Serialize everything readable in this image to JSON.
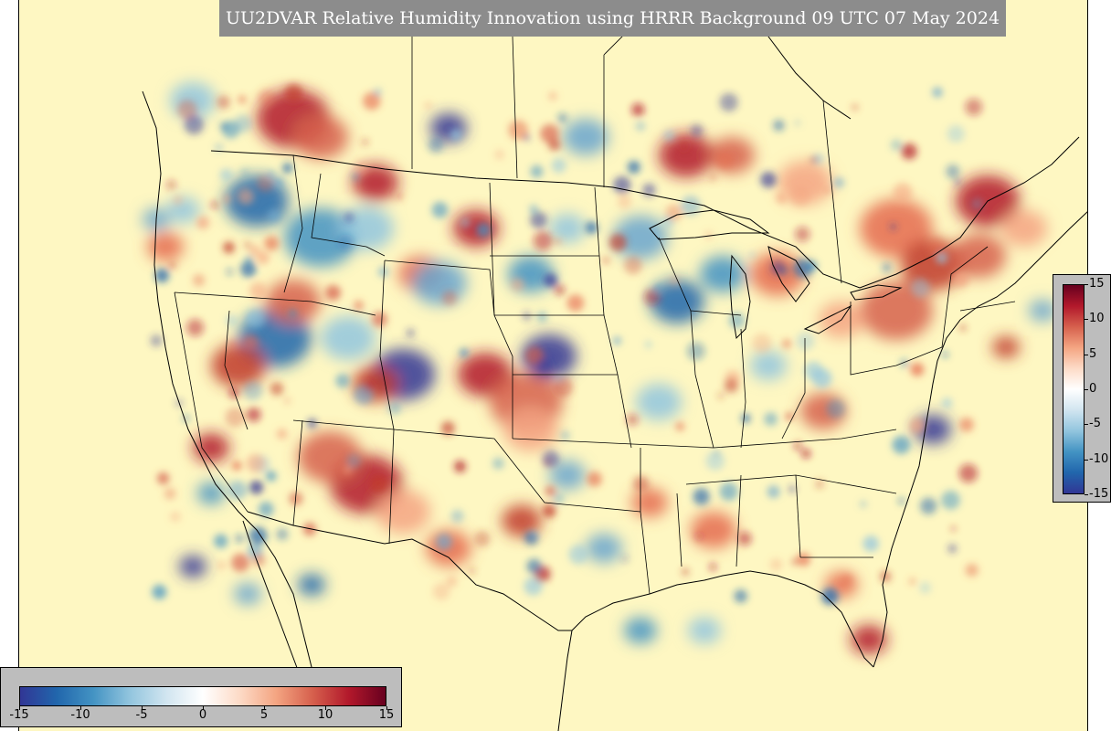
{
  "title": "UU2DVAR Relative Humidity Innovation using HRRR Background 09 UTC 07 May 2024",
  "colorbar_right": {
    "ticks": [
      "15",
      "10",
      "5",
      "0",
      "-5",
      "-10",
      "-15"
    ]
  },
  "colorbar_bottom": {
    "ticks": [
      "-15",
      "-10",
      "-5",
      "0",
      "5",
      "10",
      "15"
    ]
  },
  "colors": {
    "background": "#fef7c2",
    "title_box": "#8c8c8c",
    "colorbar_panel": "#bdbdbd",
    "positive_max": "#67001f",
    "negative_max": "#313695",
    "zero": "#ffffff"
  },
  "chart_data": {
    "type": "heatmap",
    "title": "UU2DVAR Relative Humidity Innovation using HRRR Background 09 UTC 07 May 2024",
    "value_range": [
      -15,
      15
    ],
    "colormap": "diverging red-blue (RdBu_r)",
    "colorbar_ticks": [
      -15,
      -10,
      -5,
      0,
      5,
      10,
      15
    ]
  }
}
